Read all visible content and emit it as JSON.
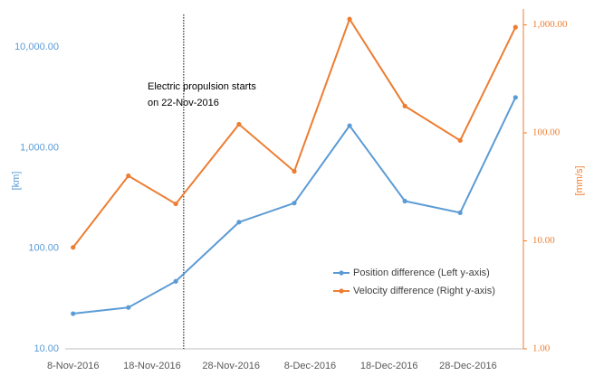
{
  "chart_data": {
    "type": "line",
    "x": [
      "8-Nov-2016",
      "15-Nov-2016",
      "21-Nov-2016",
      "29-Nov-2016",
      "6-Dec-2016",
      "13-Dec-2016",
      "20-Dec-2016",
      "27-Dec-2016",
      "3-Jan-2017"
    ],
    "xlim": [
      "7-Nov-2016",
      "4-Jan-2017"
    ],
    "xticks": [
      "8-Nov-2016",
      "18-Nov-2016",
      "28-Nov-2016",
      "8-Dec-2016",
      "18-Dec-2016",
      "28-Dec-2016"
    ],
    "ylabel": "[km]",
    "y2label": "[mm/s]",
    "ylog": true,
    "y2log": true,
    "ylim": [
      10,
      24000
    ],
    "yticks": [
      {
        "value": 10,
        "label": "10.00"
      },
      {
        "value": 100,
        "label": "100.00"
      },
      {
        "value": 1000,
        "label": "1,000.00"
      },
      {
        "value": 10000,
        "label": "10,000.00"
      }
    ],
    "y2lim": [
      1,
      1400
    ],
    "y2ticks": [
      {
        "value": 1,
        "label": "1.00"
      },
      {
        "value": 10,
        "label": "10.00"
      },
      {
        "value": 100,
        "label": "100.00"
      },
      {
        "value": 1000,
        "label": "1,000.00"
      }
    ],
    "series": [
      {
        "name": "Position difference (Left y-axis)",
        "color": "#5b9bd5",
        "values": [
          22.4,
          25.8,
          47,
          182,
          282,
          1660,
          295,
          226,
          3170
        ]
      },
      {
        "name": "Velocity difference (Right y-axis)",
        "color": "#ed7d31",
        "axis": "y2",
        "values": [
          8.7,
          40,
          22,
          120,
          44,
          1130,
          177,
          85,
          950
        ]
      }
    ],
    "annotation": {
      "x": "22-Nov-2016",
      "text": [
        "Electric propulsion starts",
        "on 22-Nov-2016"
      ]
    },
    "legend": "lower-right"
  }
}
